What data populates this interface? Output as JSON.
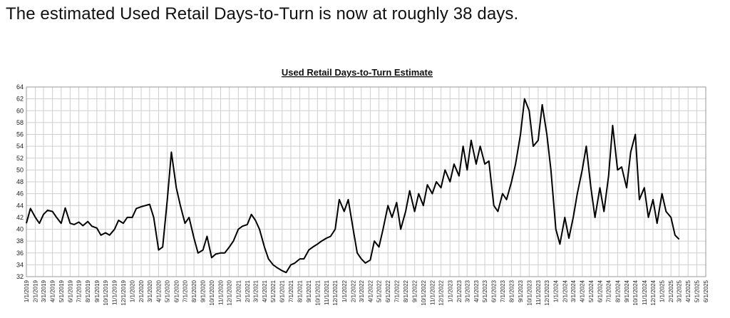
{
  "headline": "The estimated Used Retail Days-to-Turn is now at roughly 38 days.",
  "chart_data": {
    "type": "line",
    "title": "Used Retail Days-to-Turn Estimate",
    "xlabel": "",
    "ylabel": "",
    "ylim": [
      32,
      64
    ],
    "yticks": [
      32,
      34,
      36,
      38,
      40,
      42,
      44,
      46,
      48,
      50,
      52,
      54,
      56,
      58,
      60,
      62,
      64
    ],
    "grid": true,
    "x_range": [
      "1/1/2019",
      "6/1/2025"
    ],
    "x_tick_labels": [
      "1/1/2019",
      "2/1/2019",
      "3/1/2019",
      "4/1/2019",
      "5/1/2019",
      "6/1/2019",
      "7/1/2019",
      "8/1/2019",
      "9/1/2019",
      "10/1/2019",
      "11/1/2019",
      "12/1/2019",
      "1/1/2020",
      "2/1/2020",
      "3/1/2020",
      "4/1/2020",
      "5/1/2020",
      "6/1/2020",
      "7/1/2020",
      "8/1/2020",
      "9/1/2020",
      "10/1/2020",
      "11/1/2020",
      "12/1/2020",
      "1/1/2021",
      "2/1/2021",
      "3/1/2021",
      "4/1/2021",
      "5/1/2021",
      "6/1/2021",
      "7/1/2021",
      "8/1/2021",
      "9/1/2021",
      "10/1/2021",
      "11/1/2021",
      "12/1/2021",
      "1/1/2022",
      "2/1/2022",
      "3/1/2022",
      "4/1/2022",
      "5/1/2022",
      "6/1/2022",
      "7/1/2022",
      "8/1/2022",
      "9/1/2022",
      "10/1/2022",
      "11/1/2022",
      "12/1/2022",
      "1/1/2023",
      "2/1/2023",
      "3/1/2023",
      "4/1/2023",
      "5/1/2023",
      "6/1/2023",
      "7/1/2023",
      "8/1/2023",
      "9/1/2023",
      "10/1/2023",
      "11/1/2023",
      "12/1/2023",
      "1/1/2024",
      "2/1/2024",
      "3/1/2024",
      "4/1/2024",
      "5/1/2024",
      "6/1/2024",
      "7/1/2024",
      "8/1/2024",
      "9/1/2024",
      "10/1/2024",
      "11/1/2024",
      "12/1/2024",
      "1/1/2025",
      "2/1/2025",
      "3/1/2025",
      "4/1/2025",
      "5/1/2025",
      "6/1/2025"
    ],
    "x_tick_display": [
      "1/1/2019",
      "2/1/2019",
      "3/1/2019",
      "4/1/2019",
      "5/1/2019",
      "6/1/2019",
      "7/1/2019",
      "8/1/2019",
      "9/1/2019",
      "10/1/2019",
      "11/1/2019",
      "12/1/2019",
      "1/1/2020",
      "2/1/2020",
      "3/1/2020",
      "4/1/2020",
      "5/1/2020",
      "6/1/2020",
      "7/1/2020",
      "8/1/2020",
      "9/1/2020",
      "10/1/2020",
      "11/1/2020",
      "12/1/2020",
      "1/1/2021",
      "2/1/2021",
      "3/1/2021",
      "4/1/2021",
      "5/1/2021",
      "6/1/2021",
      "7/1/2021",
      "8/1/2021",
      "9/1/2021",
      "10/1/2021",
      "11/1/2021",
      "12/1/2021",
      "1/1/2022",
      "2/1/2022",
      "3/1/2022",
      "4/1/2022",
      "5/1/2022",
      "6/1/2022",
      "7/1/2022",
      "8/1/2022",
      "9/1/2022",
      "10/1/2022",
      "11/1/2022",
      "12/1/2022",
      "1/1/2023",
      "2/1/2023",
      "3/1/2023",
      "4/1/2023",
      "5/1/2023",
      "6/1/2023",
      "7/1/2023",
      "8/1/2023",
      "9/1/2023",
      "10/1/2023",
      "11/1/2023",
      "12/1/2023",
      "1/1/2024",
      "2/1/2024",
      "3/1/2024",
      "4/1/2024",
      "5/1/2024",
      "6/1/2024",
      "7/1/2024",
      "8/1/2024",
      "9/1/2024",
      "10/1/2024",
      "11/1/2024",
      "12/1/2024",
      "1/1/2025",
      "2/1/2025",
      "3/1/2025",
      "4/1/2025",
      "5/1/2025",
      "6/1/2025"
    ],
    "series": [
      {
        "name": "",
        "color": "#000000",
        "points": [
          [
            "1/1/2019",
            41.0
          ],
          [
            "1/15/2019",
            43.5
          ],
          [
            "2/1/2019",
            42.0
          ],
          [
            "2/15/2019",
            41.0
          ],
          [
            "3/1/2019",
            42.5
          ],
          [
            "3/15/2019",
            43.2
          ],
          [
            "4/1/2019",
            43.0
          ],
          [
            "4/15/2019",
            42.0
          ],
          [
            "5/1/2019",
            41.0
          ],
          [
            "5/15/2019",
            43.6
          ],
          [
            "6/1/2019",
            41.0
          ],
          [
            "6/15/2019",
            40.8
          ],
          [
            "7/1/2019",
            41.2
          ],
          [
            "7/15/2019",
            40.6
          ],
          [
            "8/1/2019",
            41.3
          ],
          [
            "8/15/2019",
            40.5
          ],
          [
            "9/1/2019",
            40.2
          ],
          [
            "9/15/2019",
            39.0
          ],
          [
            "10/1/2019",
            39.4
          ],
          [
            "10/15/2019",
            39.0
          ],
          [
            "11/1/2019",
            40.0
          ],
          [
            "11/15/2019",
            41.5
          ],
          [
            "12/1/2019",
            41.0
          ],
          [
            "12/15/2019",
            42.0
          ],
          [
            "1/1/2020",
            42.0
          ],
          [
            "1/15/2020",
            43.5
          ],
          [
            "2/1/2020",
            43.8
          ],
          [
            "2/15/2020",
            44.0
          ],
          [
            "3/1/2020",
            44.2
          ],
          [
            "3/15/2020",
            42.0
          ],
          [
            "4/1/2020",
            36.5
          ],
          [
            "4/15/2020",
            37.0
          ],
          [
            "5/1/2020",
            45.0
          ],
          [
            "5/15/2020",
            53.0
          ],
          [
            "6/1/2020",
            47.0
          ],
          [
            "6/15/2020",
            44.0
          ],
          [
            "7/1/2020",
            41.0
          ],
          [
            "7/15/2020",
            42.0
          ],
          [
            "8/1/2020",
            38.5
          ],
          [
            "8/15/2020",
            36.0
          ],
          [
            "9/1/2020",
            36.5
          ],
          [
            "9/15/2020",
            38.8
          ],
          [
            "10/1/2020",
            35.2
          ],
          [
            "10/15/2020",
            35.8
          ],
          [
            "11/1/2020",
            36.0
          ],
          [
            "11/15/2020",
            36.0
          ],
          [
            "12/1/2020",
            37.0
          ],
          [
            "12/15/2020",
            38.0
          ],
          [
            "1/1/2021",
            40.0
          ],
          [
            "1/15/2021",
            40.5
          ],
          [
            "2/1/2021",
            40.8
          ],
          [
            "2/15/2021",
            42.5
          ],
          [
            "3/1/2021",
            41.5
          ],
          [
            "3/15/2021",
            40.0
          ],
          [
            "4/1/2021",
            37.0
          ],
          [
            "4/15/2021",
            35.0
          ],
          [
            "5/1/2021",
            34.0
          ],
          [
            "5/15/2021",
            33.5
          ],
          [
            "6/1/2021",
            33.0
          ],
          [
            "6/15/2021",
            32.7
          ],
          [
            "7/1/2021",
            34.0
          ],
          [
            "7/15/2021",
            34.3
          ],
          [
            "8/1/2021",
            35.0
          ],
          [
            "8/15/2021",
            35.0
          ],
          [
            "9/1/2021",
            36.5
          ],
          [
            "9/15/2021",
            37.0
          ],
          [
            "10/1/2021",
            37.5
          ],
          [
            "10/15/2021",
            38.0
          ],
          [
            "11/1/2021",
            38.5
          ],
          [
            "11/15/2021",
            38.8
          ],
          [
            "12/1/2021",
            40.0
          ],
          [
            "12/15/2021",
            45.0
          ],
          [
            "1/1/2022",
            43.0
          ],
          [
            "1/15/2022",
            45.0
          ],
          [
            "2/1/2022",
            40.0
          ],
          [
            "2/15/2022",
            36.0
          ],
          [
            "3/1/2022",
            35.0
          ],
          [
            "3/15/2022",
            34.3
          ],
          [
            "4/1/2022",
            34.8
          ],
          [
            "4/15/2022",
            38.0
          ],
          [
            "5/1/2022",
            37.0
          ],
          [
            "5/15/2022",
            40.0
          ],
          [
            "6/1/2022",
            44.0
          ],
          [
            "6/15/2022",
            42.0
          ],
          [
            "7/1/2022",
            44.5
          ],
          [
            "7/15/2022",
            40.0
          ],
          [
            "8/1/2022",
            43.0
          ],
          [
            "8/15/2022",
            46.5
          ],
          [
            "9/1/2022",
            43.0
          ],
          [
            "9/15/2022",
            46.0
          ],
          [
            "10/1/2022",
            44.0
          ],
          [
            "10/15/2022",
            47.5
          ],
          [
            "11/1/2022",
            46.0
          ],
          [
            "11/15/2022",
            48.0
          ],
          [
            "12/1/2022",
            47.0
          ],
          [
            "12/15/2022",
            50.0
          ],
          [
            "1/1/2023",
            48.0
          ],
          [
            "1/15/2023",
            51.0
          ],
          [
            "2/1/2023",
            49.0
          ],
          [
            "2/15/2023",
            54.0
          ],
          [
            "3/1/2023",
            50.0
          ],
          [
            "3/15/2023",
            55.0
          ],
          [
            "4/1/2023",
            51.0
          ],
          [
            "4/15/2023",
            54.0
          ],
          [
            "5/1/2023",
            51.0
          ],
          [
            "5/15/2023",
            51.5
          ],
          [
            "6/1/2023",
            44.0
          ],
          [
            "6/15/2023",
            43.0
          ],
          [
            "7/1/2023",
            46.0
          ],
          [
            "7/15/2023",
            45.0
          ],
          [
            "8/1/2023",
            48.0
          ],
          [
            "8/15/2023",
            51.0
          ],
          [
            "9/1/2023",
            56.0
          ],
          [
            "9/15/2023",
            62.0
          ],
          [
            "10/1/2023",
            60.0
          ],
          [
            "10/15/2023",
            54.0
          ],
          [
            "11/1/2023",
            55.0
          ],
          [
            "11/15/2023",
            61.0
          ],
          [
            "12/1/2023",
            56.0
          ],
          [
            "12/15/2023",
            50.0
          ],
          [
            "1/1/2024",
            40.0
          ],
          [
            "1/15/2024",
            37.5
          ],
          [
            "2/1/2024",
            42.0
          ],
          [
            "2/15/2024",
            38.5
          ],
          [
            "3/1/2024",
            42.0
          ],
          [
            "3/15/2024",
            46.0
          ],
          [
            "4/1/2024",
            50.0
          ],
          [
            "4/15/2024",
            54.0
          ],
          [
            "5/1/2024",
            47.0
          ],
          [
            "5/15/2024",
            42.0
          ],
          [
            "6/1/2024",
            47.0
          ],
          [
            "6/15/2024",
            43.0
          ],
          [
            "7/1/2024",
            49.0
          ],
          [
            "7/15/2024",
            57.5
          ],
          [
            "8/1/2024",
            50.0
          ],
          [
            "8/15/2024",
            50.5
          ],
          [
            "9/1/2024",
            47.0
          ],
          [
            "9/15/2024",
            53.0
          ],
          [
            "10/1/2024",
            56.0
          ],
          [
            "10/15/2024",
            45.0
          ],
          [
            "11/1/2024",
            47.0
          ],
          [
            "11/15/2024",
            42.0
          ],
          [
            "12/1/2024",
            45.0
          ],
          [
            "12/15/2024",
            41.0
          ],
          [
            "1/1/2025",
            46.0
          ],
          [
            "1/15/2025",
            43.0
          ],
          [
            "2/1/2025",
            42.0
          ],
          [
            "2/15/2025",
            39.0
          ],
          [
            "3/1/2025",
            38.3
          ]
        ]
      }
    ]
  }
}
